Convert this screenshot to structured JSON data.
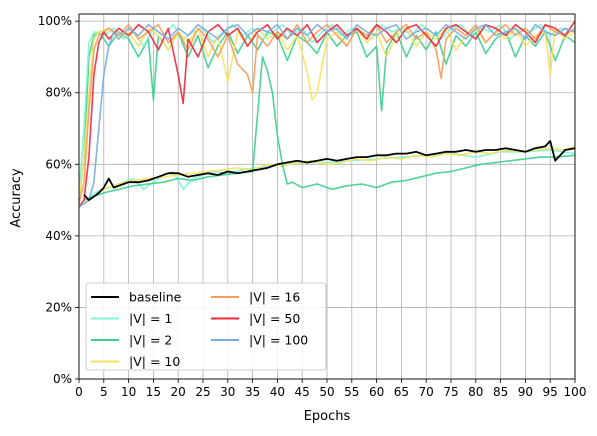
{
  "chart_data": {
    "type": "line",
    "title": "",
    "xlabel": "Epochs",
    "ylabel": "Accuracy",
    "xlim": [
      0,
      100
    ],
    "ylim": [
      0,
      1.02
    ],
    "xticks": [
      0,
      5,
      10,
      15,
      20,
      25,
      30,
      35,
      40,
      45,
      50,
      55,
      60,
      65,
      70,
      75,
      80,
      85,
      90,
      95,
      100
    ],
    "xtick_labels": [
      "0",
      "5",
      "10",
      "15",
      "20",
      "25",
      "30",
      "35",
      "40",
      "45",
      "50",
      "55",
      "60",
      "65",
      "70",
      "75",
      "80",
      "85",
      "90",
      "95",
      "100"
    ],
    "yticks": [
      0,
      0.2,
      0.4,
      0.6,
      0.8,
      1.0
    ],
    "ytick_labels": [
      "0%",
      "20%",
      "40%",
      "60%",
      "80%",
      "100%"
    ],
    "grid": true,
    "legend_position": "lower-left",
    "legend_columns": 2,
    "legend": [
      {
        "label": "baseline",
        "color": "#000000"
      },
      {
        "label": "|V| = 1",
        "color": "#7ff5d8"
      },
      {
        "label": "|V| = 2",
        "color": "#3ecf8e"
      },
      {
        "label": "|V| = 10",
        "color": "#f7e35f"
      },
      {
        "label": "|V| = 16",
        "color": "#f5a05a"
      },
      {
        "label": "|V| = 50",
        "color": "#f0283c"
      },
      {
        "label": "|V| = 100",
        "color": "#7aaee0"
      }
    ],
    "series": [
      {
        "name": "baseline",
        "color": "#000000",
        "stroke_width": 1.8,
        "x": [
          1,
          2,
          3,
          4,
          5,
          6,
          7,
          8,
          9,
          10,
          12,
          14,
          16,
          18,
          20,
          22,
          24,
          26,
          28,
          30,
          32,
          34,
          36,
          38,
          40,
          42,
          44,
          46,
          48,
          50,
          52,
          54,
          56,
          58,
          60,
          62,
          64,
          66,
          68,
          70,
          72,
          74,
          76,
          78,
          80,
          82,
          84,
          86,
          88,
          90,
          92,
          94,
          95,
          96,
          98,
          100
        ],
        "values": [
          0.515,
          0.5,
          0.51,
          0.52,
          0.535,
          0.56,
          0.535,
          0.54,
          0.545,
          0.55,
          0.55,
          0.555,
          0.565,
          0.575,
          0.575,
          0.565,
          0.57,
          0.575,
          0.57,
          0.58,
          0.575,
          0.58,
          0.585,
          0.59,
          0.6,
          0.605,
          0.61,
          0.605,
          0.61,
          0.615,
          0.61,
          0.615,
          0.62,
          0.62,
          0.625,
          0.625,
          0.63,
          0.63,
          0.635,
          0.625,
          0.63,
          0.635,
          0.635,
          0.64,
          0.635,
          0.64,
          0.64,
          0.645,
          0.64,
          0.635,
          0.645,
          0.65,
          0.665,
          0.61,
          0.64,
          0.645
        ]
      },
      {
        "name": "|V| = 1",
        "color": "#7ff5d8",
        "x": [
          1,
          2,
          3,
          5,
          7,
          9,
          11,
          13,
          15,
          17,
          19,
          21,
          23,
          25,
          27,
          30,
          33,
          36,
          40,
          45,
          50,
          55,
          60,
          65,
          70,
          75,
          80,
          85,
          90,
          95,
          100
        ],
        "values": [
          0.49,
          0.5,
          0.52,
          0.53,
          0.54,
          0.55,
          0.56,
          0.53,
          0.55,
          0.57,
          0.58,
          0.53,
          0.56,
          0.57,
          0.58,
          0.575,
          0.585,
          0.59,
          0.6,
          0.605,
          0.605,
          0.61,
          0.615,
          0.62,
          0.625,
          0.63,
          0.62,
          0.635,
          0.635,
          0.64,
          0.63
        ]
      },
      {
        "name": "|V| = 10",
        "color": "#f7e35f",
        "x": [
          1,
          3,
          5,
          8,
          11,
          14,
          17,
          20,
          23,
          26,
          29,
          32,
          35,
          38,
          41,
          44,
          47,
          50,
          53,
          56,
          59,
          62,
          65,
          68,
          71,
          74,
          77,
          80,
          83,
          86,
          89,
          92,
          95,
          98,
          100
        ],
        "values": [
          0.5,
          0.51,
          0.53,
          0.545,
          0.555,
          0.56,
          0.565,
          0.57,
          0.575,
          0.58,
          0.585,
          0.59,
          0.585,
          0.6,
          0.595,
          0.605,
          0.61,
          0.6,
          0.605,
          0.615,
          0.61,
          0.62,
          0.615,
          0.625,
          0.62,
          0.63,
          0.625,
          0.635,
          0.63,
          0.64,
          0.635,
          0.64,
          0.645,
          0.64,
          0.65
        ]
      },
      {
        "name": "|V| = 2",
        "color": "#3ecf8e",
        "x": [
          1,
          3,
          5,
          8,
          11,
          14,
          17,
          20,
          23,
          26,
          29,
          32,
          35,
          37,
          38,
          39,
          40,
          41,
          42,
          43,
          45,
          48,
          51,
          54,
          57,
          60,
          63,
          66,
          69,
          72,
          75,
          78,
          81,
          84,
          87,
          90,
          93,
          96,
          100
        ],
        "values": [
          0.5,
          0.51,
          0.52,
          0.53,
          0.54,
          0.545,
          0.55,
          0.56,
          0.555,
          0.565,
          0.57,
          0.575,
          0.58,
          0.9,
          0.86,
          0.8,
          0.68,
          0.6,
          0.545,
          0.55,
          0.535,
          0.545,
          0.53,
          0.54,
          0.545,
          0.535,
          0.55,
          0.555,
          0.565,
          0.575,
          0.58,
          0.59,
          0.6,
          0.605,
          0.61,
          0.615,
          0.62,
          0.62,
          0.625
        ]
      },
      {
        "name": "|V| = 2",
        "color": "#3ecf8e",
        "x": [
          0,
          1,
          2,
          3,
          4,
          6,
          8,
          10,
          12,
          14,
          15,
          16,
          18,
          20,
          22,
          24,
          26,
          28,
          30,
          32,
          34,
          36,
          38,
          40,
          42,
          44,
          46,
          48,
          50,
          52,
          54,
          56,
          58,
          60,
          61,
          62,
          64,
          66,
          68,
          70,
          72,
          74,
          76,
          78,
          80,
          82,
          84,
          86,
          88,
          90,
          92,
          94,
          96,
          98,
          100
        ],
        "values": [
          0.5,
          0.62,
          0.9,
          0.96,
          0.97,
          0.93,
          0.97,
          0.95,
          0.9,
          0.95,
          0.78,
          0.96,
          0.92,
          0.97,
          0.9,
          0.96,
          0.87,
          0.93,
          0.97,
          0.91,
          0.96,
          0.92,
          0.97,
          0.96,
          0.89,
          0.96,
          0.94,
          0.91,
          0.97,
          0.93,
          0.96,
          0.97,
          0.9,
          0.93,
          0.75,
          0.92,
          0.97,
          0.9,
          0.96,
          0.92,
          0.97,
          0.88,
          0.96,
          0.93,
          0.97,
          0.91,
          0.95,
          0.97,
          0.9,
          0.96,
          0.93,
          0.97,
          0.89,
          0.96,
          0.94
        ]
      },
      {
        "name": "|V| = 1",
        "color": "#7ff5d8",
        "x": [
          0,
          1,
          2,
          3,
          5,
          7,
          9,
          11,
          13,
          15,
          17,
          19,
          21,
          23,
          25,
          27,
          29,
          31,
          33,
          35,
          37,
          39,
          41,
          43,
          45,
          47,
          49,
          51,
          53,
          55,
          57,
          59,
          61,
          63,
          65,
          67,
          69,
          71,
          73,
          75,
          77,
          79,
          81,
          83,
          85,
          87,
          89,
          91,
          93,
          95,
          97,
          100
        ],
        "values": [
          0.52,
          0.7,
          0.94,
          0.97,
          0.96,
          0.98,
          0.95,
          0.97,
          0.93,
          0.98,
          0.96,
          0.99,
          0.95,
          0.97,
          0.98,
          0.94,
          0.97,
          0.99,
          0.96,
          0.98,
          0.95,
          0.97,
          0.99,
          0.96,
          0.98,
          0.94,
          0.97,
          0.99,
          0.96,
          0.98,
          0.97,
          0.95,
          0.99,
          0.97,
          0.98,
          0.96,
          0.99,
          0.97,
          0.95,
          0.98,
          0.99,
          0.96,
          0.98,
          0.97,
          0.99,
          0.95,
          0.98,
          0.97,
          0.99,
          0.96,
          0.98,
          0.97
        ]
      },
      {
        "name": "|V| = 10",
        "color": "#f7e35f",
        "x": [
          0,
          1,
          2,
          3,
          4,
          6,
          8,
          10,
          12,
          14,
          16,
          18,
          20,
          22,
          24,
          26,
          28,
          30,
          32,
          34,
          36,
          38,
          40,
          42,
          44,
          46,
          47,
          48,
          50,
          52,
          54,
          56,
          58,
          60,
          62,
          64,
          66,
          68,
          70,
          72,
          74,
          76,
          78,
          80,
          82,
          84,
          86,
          88,
          90,
          92,
          94,
          95,
          96,
          98,
          100
        ],
        "values": [
          0.5,
          0.62,
          0.8,
          0.95,
          0.97,
          0.98,
          0.95,
          0.97,
          0.93,
          0.98,
          0.96,
          0.92,
          0.97,
          0.94,
          0.98,
          0.9,
          0.96,
          0.83,
          0.97,
          0.93,
          0.98,
          0.95,
          0.97,
          0.92,
          0.96,
          0.86,
          0.78,
          0.8,
          0.95,
          0.97,
          0.93,
          0.98,
          0.94,
          0.97,
          0.9,
          0.96,
          0.98,
          0.93,
          0.97,
          0.95,
          0.98,
          0.92,
          0.96,
          0.98,
          0.94,
          0.97,
          0.95,
          0.98,
          0.93,
          0.96,
          0.97,
          0.85,
          0.98,
          0.95,
          0.97
        ]
      },
      {
        "name": "|V| = 16",
        "color": "#f5a05a",
        "x": [
          0,
          1,
          2,
          3,
          4,
          6,
          8,
          10,
          12,
          14,
          16,
          18,
          20,
          22,
          24,
          26,
          28,
          30,
          32,
          34,
          35,
          36,
          38,
          40,
          42,
          44,
          46,
          48,
          50,
          52,
          54,
          56,
          58,
          60,
          62,
          64,
          66,
          68,
          70,
          72,
          73,
          74,
          76,
          78,
          80,
          82,
          84,
          86,
          88,
          90,
          92,
          94,
          96,
          98,
          100
        ],
        "values": [
          0.49,
          0.55,
          0.75,
          0.92,
          0.96,
          0.98,
          0.96,
          0.99,
          0.95,
          0.97,
          0.99,
          0.94,
          0.97,
          0.92,
          0.98,
          0.95,
          0.9,
          0.96,
          0.88,
          0.85,
          0.8,
          0.96,
          0.93,
          0.97,
          0.95,
          0.99,
          0.94,
          0.97,
          0.99,
          0.96,
          0.93,
          0.98,
          0.96,
          0.99,
          0.94,
          0.97,
          0.99,
          0.95,
          0.97,
          0.92,
          0.84,
          0.95,
          0.98,
          0.96,
          0.99,
          0.94,
          0.97,
          0.99,
          0.96,
          0.98,
          0.95,
          0.99,
          0.97,
          0.96,
          0.98
        ]
      },
      {
        "name": "|V| = 50",
        "color": "#f0283c",
        "x": [
          0,
          1,
          2,
          3,
          4,
          5,
          6,
          8,
          10,
          12,
          14,
          16,
          18,
          20,
          21,
          22,
          24,
          26,
          28,
          30,
          32,
          34,
          36,
          38,
          40,
          42,
          44,
          46,
          48,
          50,
          52,
          54,
          56,
          58,
          60,
          62,
          64,
          66,
          68,
          70,
          72,
          74,
          76,
          78,
          80,
          82,
          84,
          86,
          88,
          90,
          92,
          94,
          96,
          98,
          100
        ],
        "values": [
          0.48,
          0.5,
          0.62,
          0.85,
          0.94,
          0.97,
          0.95,
          0.98,
          0.96,
          0.99,
          0.97,
          0.92,
          0.98,
          0.85,
          0.77,
          0.95,
          0.9,
          0.97,
          0.99,
          0.96,
          0.98,
          0.93,
          0.97,
          0.99,
          0.95,
          0.98,
          0.96,
          0.99,
          0.94,
          0.97,
          0.99,
          0.96,
          0.98,
          0.95,
          0.99,
          0.97,
          0.94,
          0.98,
          0.99,
          0.96,
          0.93,
          0.98,
          0.99,
          0.97,
          0.95,
          0.99,
          0.98,
          0.96,
          0.99,
          0.97,
          0.94,
          0.99,
          0.98,
          0.96,
          1.0
        ]
      },
      {
        "name": "|V| = 100",
        "color": "#7aaee0",
        "x": [
          0,
          1,
          2,
          3,
          4,
          5,
          6,
          7,
          8,
          10,
          12,
          14,
          16,
          18,
          20,
          22,
          24,
          26,
          28,
          30,
          32,
          34,
          36,
          38,
          40,
          42,
          44,
          46,
          48,
          50,
          52,
          54,
          56,
          58,
          60,
          62,
          64,
          66,
          68,
          70,
          72,
          74,
          76,
          78,
          80,
          82,
          84,
          86,
          88,
          90,
          92,
          94,
          96,
          98,
          100
        ],
        "values": [
          0.48,
          0.49,
          0.5,
          0.55,
          0.7,
          0.85,
          0.93,
          0.97,
          0.95,
          0.98,
          0.96,
          0.99,
          0.97,
          0.95,
          0.98,
          0.96,
          0.99,
          0.97,
          0.95,
          0.98,
          0.99,
          0.96,
          0.98,
          0.97,
          0.99,
          0.95,
          0.98,
          0.96,
          0.99,
          0.97,
          0.98,
          0.95,
          0.99,
          0.97,
          0.96,
          0.98,
          0.99,
          0.95,
          0.97,
          0.98,
          0.96,
          0.99,
          0.97,
          0.95,
          0.98,
          0.99,
          0.96,
          0.97,
          0.98,
          0.95,
          0.99,
          0.97,
          0.96,
          0.98,
          0.97
        ]
      }
    ]
  }
}
